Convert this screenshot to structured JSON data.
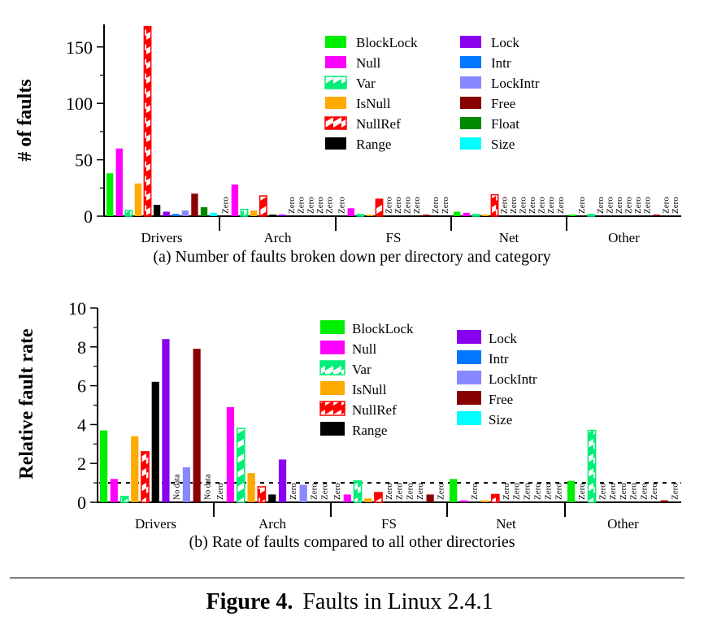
{
  "categories": [
    "BlockLock",
    "Null",
    "Var",
    "IsNull",
    "NullRef",
    "Range",
    "Lock",
    "Intr",
    "LockIntr",
    "Free",
    "Float",
    "Size"
  ],
  "colors": {
    "BlockLock": "#00ee00",
    "Null": "#ff00ff",
    "Var": "#00ee77",
    "IsNull": "#ffaa00",
    "NullRef": "#ff0000",
    "Range": "#000000",
    "Lock": "#8800ee",
    "Intr": "#0077ff",
    "LockIntr": "#8888ff",
    "Free": "#880000",
    "Float": "#008800",
    "Size": "#00ffff"
  },
  "hatched": [
    "Var",
    "NullRef"
  ],
  "zero_text": "Zero",
  "nodata_text": "No data",
  "figure": {
    "label": "Figure 4.",
    "text": "Faults in Linux 2.4.1"
  },
  "chart_data": [
    {
      "type": "bar",
      "title": "(a)  Number of faults broken down per directory and category",
      "ylabel": "# of faults",
      "ylim": [
        0,
        170
      ],
      "yticks": [
        0,
        50,
        100,
        150
      ],
      "groups": [
        "Drivers",
        "Arch",
        "FS",
        "Net",
        "Other"
      ],
      "categories": [
        "BlockLock",
        "Null",
        "Var",
        "IsNull",
        "NullRef",
        "Range",
        "Lock",
        "Intr",
        "LockIntr",
        "Free",
        "Float",
        "Size"
      ],
      "legend": {
        "col1": [
          "BlockLock",
          "Null",
          "Var",
          "IsNull",
          "NullRef",
          "Range"
        ],
        "col2": [
          "Lock",
          "Intr",
          "LockIntr",
          "Free",
          "Float",
          "Size"
        ]
      },
      "series": [
        {
          "group": "Drivers",
          "values": [
            38,
            60,
            5,
            29,
            168,
            10,
            4,
            2,
            5,
            20,
            8,
            3
          ]
        },
        {
          "group": "Arch",
          "values": [
            0,
            28,
            6,
            5,
            18,
            1,
            1,
            0,
            0,
            0,
            0,
            0
          ]
        },
        {
          "group": "FS",
          "values": [
            0,
            7,
            1,
            1,
            15,
            0,
            0,
            0,
            0,
            1,
            0,
            0
          ]
        },
        {
          "group": "Net",
          "values": [
            4,
            3,
            1,
            1,
            19,
            0,
            0,
            0,
            0,
            0,
            0,
            0
          ]
        },
        {
          "group": "Other",
          "values": [
            1,
            0,
            1,
            0,
            0,
            0,
            0,
            0,
            0,
            1,
            0,
            0
          ]
        }
      ]
    },
    {
      "type": "bar",
      "title": "(b)  Rate of faults compared to all other directories",
      "ylabel": "Relative fault rate",
      "ylim": [
        0,
        10
      ],
      "yticks": [
        0,
        2,
        4,
        6,
        8,
        10
      ],
      "reference_line": 1,
      "groups": [
        "Drivers",
        "Arch",
        "FS",
        "Net",
        "Other"
      ],
      "categories": [
        "BlockLock",
        "Null",
        "Var",
        "IsNull",
        "NullRef",
        "Range",
        "Lock",
        "Intr",
        "LockIntr",
        "Free",
        "Size"
      ],
      "legend": {
        "col1": [
          "BlockLock",
          "Null",
          "Var",
          "IsNull",
          "NullRef",
          "Range"
        ],
        "col2": [
          "Lock",
          "Intr",
          "LockIntr",
          "Free",
          "Size"
        ]
      },
      "series": [
        {
          "group": "Drivers",
          "values": [
            3.7,
            1.2,
            0.3,
            3.4,
            2.6,
            6.2,
            8.4,
            null,
            1.8,
            7.9,
            null
          ]
        },
        {
          "group": "Arch",
          "values": [
            0,
            4.9,
            3.8,
            1.5,
            0.8,
            0.4,
            2.2,
            0,
            0.9,
            0,
            0
          ]
        },
        {
          "group": "FS",
          "values": [
            0,
            0.4,
            1.1,
            0.2,
            0.5,
            0,
            0,
            0,
            0,
            0.4,
            0
          ]
        },
        {
          "group": "Net",
          "values": [
            1.2,
            0.1,
            0,
            0.1,
            0.4,
            0,
            0,
            0,
            0,
            0,
            0
          ]
        },
        {
          "group": "Other",
          "values": [
            1.1,
            0,
            3.7,
            0,
            0,
            0,
            0,
            0,
            0,
            0.1,
            0
          ]
        }
      ]
    }
  ]
}
